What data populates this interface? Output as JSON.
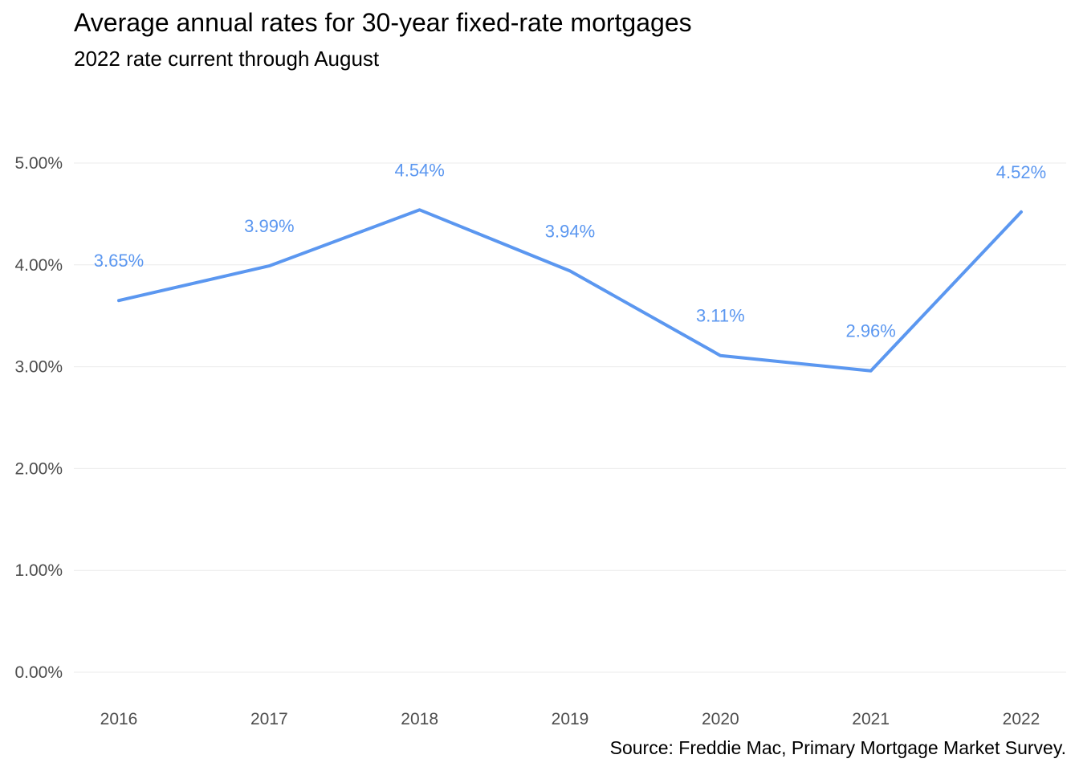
{
  "chart_data": {
    "type": "line",
    "title": "Average annual rates for 30-year fixed-rate mortgages",
    "subtitle": "2022 rate current through August",
    "caption": "Source: Freddie Mac, Primary Mortgage Market Survey.",
    "xlabel": "",
    "ylabel": "",
    "categories": [
      "2016",
      "2017",
      "2018",
      "2019",
      "2020",
      "2021",
      "2022"
    ],
    "values": [
      3.65,
      3.99,
      4.54,
      3.94,
      3.11,
      2.96,
      4.52
    ],
    "data_labels": [
      "3.65%",
      "3.99%",
      "4.54%",
      "3.94%",
      "3.11%",
      "2.96%",
      "4.52%"
    ],
    "y_ticks": [
      0,
      1,
      2,
      3,
      4,
      5
    ],
    "y_tick_labels": [
      "0.00%",
      "1.00%",
      "2.00%",
      "3.00%",
      "4.00%",
      "5.00%"
    ],
    "ylim": [
      0,
      5
    ],
    "grid": true,
    "legend": "none",
    "colors": {
      "line": "#5b97f0",
      "grid": "#ebebeb",
      "tick_text": "#4d4d4d"
    }
  }
}
